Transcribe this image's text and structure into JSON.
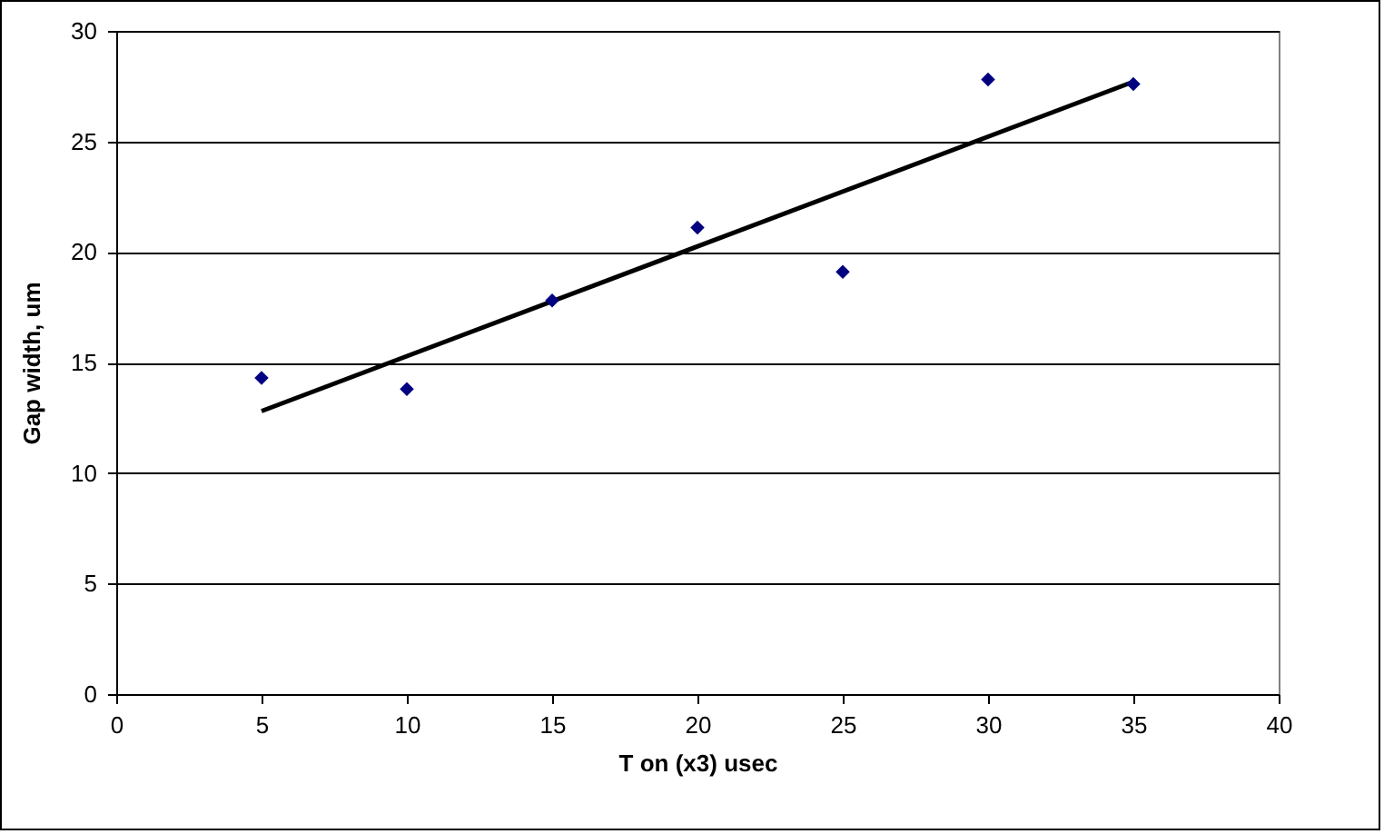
{
  "chart_data": {
    "type": "scatter",
    "xlabel": "T on (x3) usec",
    "ylabel": "Gap width, um",
    "x": [
      5,
      10,
      15,
      20,
      25,
      30,
      35
    ],
    "series": [
      {
        "color": "#000080",
        "marker": "diamond",
        "values": [
          14.3,
          13.8,
          17.8,
          21.1,
          19.1,
          27.8,
          27.6
        ]
      },
      {
        "type": "line",
        "color": "#000000",
        "x": [
          5,
          35
        ],
        "values": [
          12.8,
          27.7
        ]
      }
    ],
    "xlim": [
      0,
      40
    ],
    "xticks": [
      0,
      5,
      10,
      15,
      20,
      25,
      30,
      35,
      40
    ],
    "ylim": [
      0,
      30
    ],
    "yticks": [
      0,
      5,
      10,
      15,
      20,
      25,
      30
    ],
    "grid": "y"
  }
}
